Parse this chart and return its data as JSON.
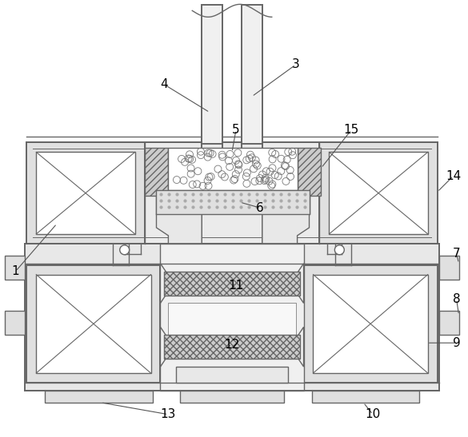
{
  "fig_width": 5.85,
  "fig_height": 5.47,
  "dpi": 100,
  "bg_color": "#ffffff",
  "lc": "#666666",
  "lc2": "#444444",
  "fc_gray": "#d8d8d8",
  "fc_light": "#eeeeee",
  "fc_white": "#ffffff"
}
